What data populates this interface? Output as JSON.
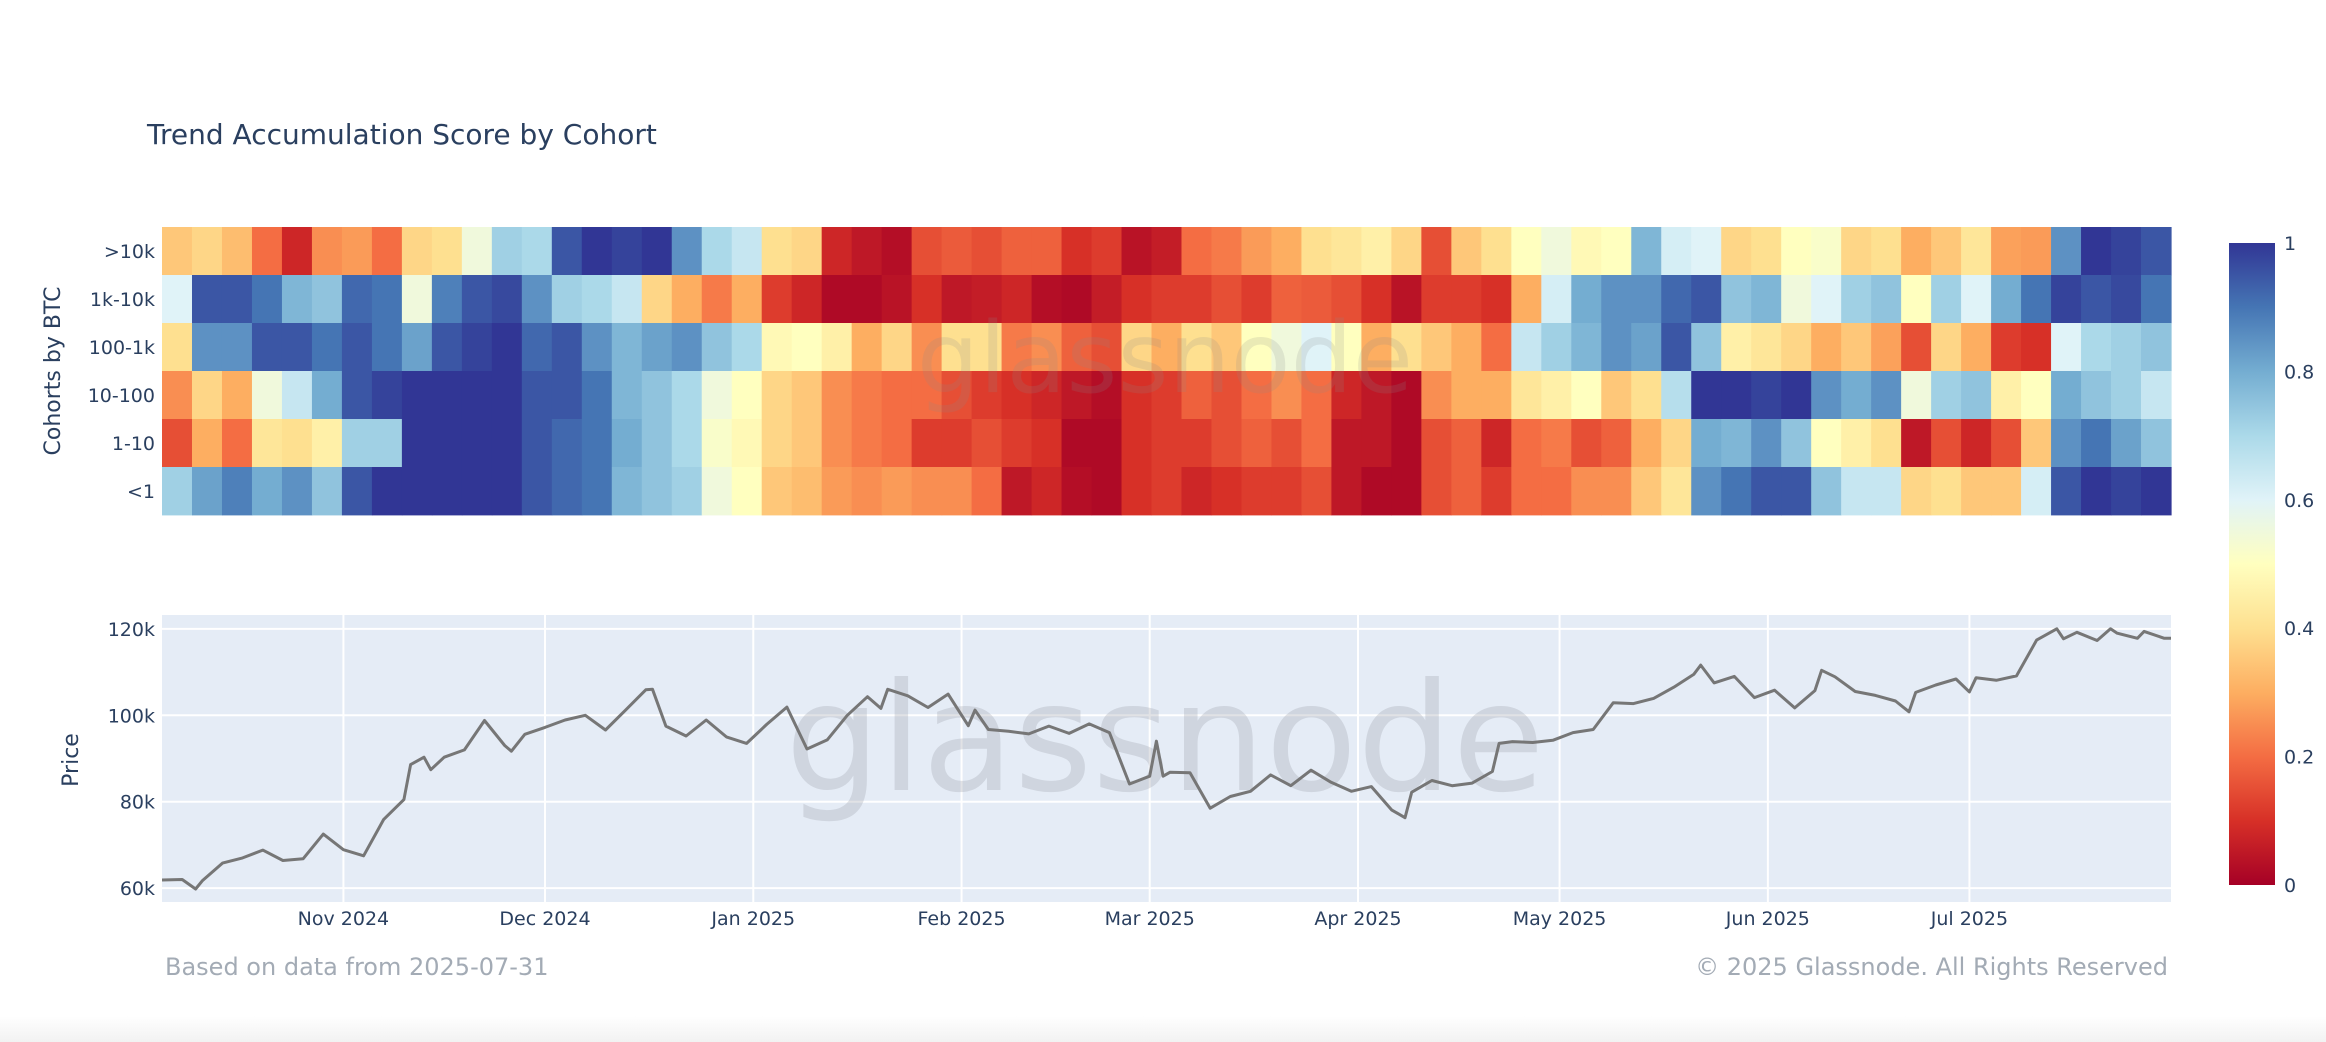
{
  "title": "Trend Accumulation Score by Cohort",
  "footer": {
    "left": "Based on data from 2025-07-31",
    "right": "© 2025 Glassnode. All Rights Reserved"
  },
  "watermark": "glassnode",
  "chart_data": [
    {
      "type": "heatmap",
      "ylabel": "Cohorts by BTC",
      "x_range": [
        "2024-10-05",
        "2025-07-31"
      ],
      "colorscale": [
        "#a50026",
        "#d73027",
        "#f46d43",
        "#fdae61",
        "#fee090",
        "#ffffbf",
        "#e0f3f8",
        "#abd9e9",
        "#74add1",
        "#4575b4",
        "#313695"
      ],
      "zlim": [
        0,
        1
      ],
      "colorbar_ticks": [
        "0",
        "0.2",
        "0.4",
        "0.6",
        "0.8",
        "1"
      ],
      "colorbar_tick_values": [
        0,
        0.2,
        0.4,
        0.6,
        0.8,
        1
      ],
      "rows": [
        {
          "label": ">10k",
          "values": [
            0.35,
            0.38,
            0.33,
            0.2,
            0.08,
            0.25,
            0.27,
            0.2,
            0.38,
            0.4,
            0.55,
            0.72,
            0.7,
            0.95,
            1,
            0.98,
            1,
            0.85,
            0.7,
            0.65,
            0.4,
            0.38,
            0.08,
            0.05,
            0.03,
            0.15,
            0.17,
            0.15,
            0.18,
            0.18,
            0.1,
            0.12,
            0.04,
            0.06,
            0.2,
            0.22,
            0.27,
            0.3,
            0.4,
            0.42,
            0.45,
            0.38,
            0.15,
            0.35,
            0.4,
            0.5,
            0.55,
            0.48,
            0.5,
            0.78,
            0.62,
            0.6,
            0.38,
            0.4,
            0.5,
            0.52,
            0.38,
            0.4,
            0.3,
            0.35,
            0.42,
            0.28,
            0.27,
            0.85,
            1,
            0.98,
            0.95
          ]
        },
        {
          "label": "1k-10k",
          "values": [
            0.6,
            0.95,
            0.95,
            0.9,
            0.78,
            0.75,
            0.92,
            0.9,
            0.55,
            0.88,
            0.95,
            0.97,
            0.85,
            0.72,
            0.7,
            0.65,
            0.38,
            0.3,
            0.22,
            0.3,
            0.12,
            0.08,
            0.02,
            0.02,
            0.04,
            0.1,
            0.05,
            0.06,
            0.08,
            0.03,
            0.02,
            0.06,
            0.1,
            0.12,
            0.12,
            0.15,
            0.12,
            0.18,
            0.17,
            0.15,
            0.1,
            0.04,
            0.12,
            0.12,
            0.1,
            0.3,
            0.62,
            0.8,
            0.85,
            0.85,
            0.92,
            0.95,
            0.75,
            0.78,
            0.55,
            0.6,
            0.72,
            0.75,
            0.5,
            0.72,
            0.6,
            0.8,
            0.9,
            0.98,
            0.95,
            0.97,
            0.9
          ]
        },
        {
          "label": "100-1k",
          "values": [
            0.4,
            0.85,
            0.85,
            0.95,
            0.95,
            0.9,
            0.95,
            0.9,
            0.82,
            0.95,
            0.98,
            1,
            0.92,
            0.95,
            0.85,
            0.78,
            0.82,
            0.85,
            0.75,
            0.7,
            0.48,
            0.5,
            0.45,
            0.3,
            0.38,
            0.25,
            0.4,
            0.4,
            0.22,
            0.25,
            0.18,
            0.15,
            0.38,
            0.3,
            0.4,
            0.35,
            0.5,
            0.55,
            0.6,
            0.5,
            0.3,
            0.4,
            0.35,
            0.3,
            0.2,
            0.65,
            0.72,
            0.78,
            0.85,
            0.82,
            0.95,
            0.75,
            0.45,
            0.42,
            0.38,
            0.3,
            0.35,
            0.28,
            0.15,
            0.38,
            0.3,
            0.12,
            0.1,
            0.6,
            0.7,
            0.72,
            0.75
          ]
        },
        {
          "label": "10-100",
          "values": [
            0.25,
            0.38,
            0.3,
            0.55,
            0.65,
            0.8,
            0.95,
            0.98,
            1,
            1,
            1,
            1,
            0.95,
            0.95,
            0.9,
            0.78,
            0.75,
            0.7,
            0.55,
            0.5,
            0.38,
            0.35,
            0.25,
            0.22,
            0.2,
            0.2,
            0.15,
            0.12,
            0.1,
            0.08,
            0.05,
            0.03,
            0.1,
            0.12,
            0.18,
            0.15,
            0.2,
            0.25,
            0.2,
            0.08,
            0.05,
            0.02,
            0.25,
            0.3,
            0.3,
            0.42,
            0.45,
            0.5,
            0.35,
            0.4,
            0.68,
            1,
            1,
            0.98,
            1,
            0.85,
            0.8,
            0.85,
            0.55,
            0.72,
            0.75,
            0.45,
            0.5,
            0.8,
            0.75,
            0.72,
            0.65
          ]
        },
        {
          "label": "1-10",
          "values": [
            0.15,
            0.3,
            0.2,
            0.42,
            0.4,
            0.45,
            0.72,
            0.72,
            1,
            1,
            1,
            1,
            0.95,
            0.92,
            0.9,
            0.8,
            0.75,
            0.7,
            0.52,
            0.48,
            0.38,
            0.35,
            0.25,
            0.22,
            0.2,
            0.12,
            0.12,
            0.15,
            0.12,
            0.1,
            0.02,
            0.02,
            0.1,
            0.12,
            0.12,
            0.15,
            0.18,
            0.15,
            0.2,
            0.05,
            0.05,
            0.02,
            0.15,
            0.18,
            0.08,
            0.2,
            0.22,
            0.15,
            0.18,
            0.3,
            0.38,
            0.8,
            0.78,
            0.85,
            0.75,
            0.5,
            0.45,
            0.4,
            0.05,
            0.15,
            0.08,
            0.15,
            0.35,
            0.85,
            0.9,
            0.82,
            0.75
          ]
        },
        {
          "label": "<1",
          "values": [
            0.72,
            0.82,
            0.88,
            0.8,
            0.85,
            0.75,
            0.95,
            1,
            1,
            1,
            1,
            1,
            0.95,
            0.92,
            0.9,
            0.78,
            0.75,
            0.72,
            0.55,
            0.5,
            0.35,
            0.33,
            0.27,
            0.25,
            0.27,
            0.25,
            0.25,
            0.2,
            0.05,
            0.08,
            0.03,
            0.02,
            0.1,
            0.12,
            0.08,
            0.1,
            0.12,
            0.12,
            0.15,
            0.05,
            0.02,
            0.02,
            0.15,
            0.18,
            0.12,
            0.2,
            0.2,
            0.25,
            0.25,
            0.35,
            0.42,
            0.85,
            0.9,
            0.95,
            0.95,
            0.75,
            0.65,
            0.65,
            0.38,
            0.4,
            0.35,
            0.35,
            0.62,
            0.95,
            1,
            0.98,
            1
          ]
        }
      ]
    },
    {
      "type": "line",
      "ylabel": "Price",
      "ylim": [
        56.8,
        123.2
      ],
      "xlim": [
        "2024-10-05",
        "2025-07-31"
      ],
      "grid": true,
      "line_color": "#767676",
      "background": "#e5ecf6",
      "y_ticks": [
        {
          "value": 60,
          "label": "60k"
        },
        {
          "value": 80,
          "label": "80k"
        },
        {
          "value": 100,
          "label": "100k"
        },
        {
          "value": 120,
          "label": "120k"
        }
      ],
      "x_ticks": [
        {
          "date": "2024-11-01",
          "label": "Nov 2024"
        },
        {
          "date": "2024-12-01",
          "label": "Dec 2024"
        },
        {
          "date": "2025-01-01",
          "label": "Jan 2025"
        },
        {
          "date": "2025-02-01",
          "label": "Feb 2025"
        },
        {
          "date": "2025-03-01",
          "label": "Mar 2025"
        },
        {
          "date": "2025-04-01",
          "label": "Apr 2025"
        },
        {
          "date": "2025-05-01",
          "label": "May 2025"
        },
        {
          "date": "2025-06-01",
          "label": "Jun 2025"
        },
        {
          "date": "2025-07-01",
          "label": "Jul 2025"
        }
      ],
      "points": [
        [
          "2024-10-05",
          61.9
        ],
        [
          "2024-10-08",
          62.0
        ],
        [
          "2024-10-10",
          59.8
        ],
        [
          "2024-10-11",
          61.7
        ],
        [
          "2024-10-14",
          65.8
        ],
        [
          "2024-10-17",
          67.0
        ],
        [
          "2024-10-20",
          68.8
        ],
        [
          "2024-10-23",
          66.4
        ],
        [
          "2024-10-26",
          66.8
        ],
        [
          "2024-10-29",
          72.5
        ],
        [
          "2024-11-01",
          68.9
        ],
        [
          "2024-11-04",
          67.5
        ],
        [
          "2024-11-07",
          75.9
        ],
        [
          "2024-11-10",
          80.5
        ],
        [
          "2024-11-11",
          88.6
        ],
        [
          "2024-11-13",
          90.3
        ],
        [
          "2024-11-14",
          87.4
        ],
        [
          "2024-11-16",
          90.3
        ],
        [
          "2024-11-19",
          92.0
        ],
        [
          "2024-11-22",
          98.8
        ],
        [
          "2024-11-25",
          93.0
        ],
        [
          "2024-11-26",
          91.7
        ],
        [
          "2024-11-28",
          95.6
        ],
        [
          "2024-12-01",
          97.2
        ],
        [
          "2024-12-04",
          98.9
        ],
        [
          "2024-12-07",
          100.0
        ],
        [
          "2024-12-10",
          96.6
        ],
        [
          "2024-12-13",
          101.2
        ],
        [
          "2024-12-16",
          105.9
        ],
        [
          "2024-12-17",
          106.0
        ],
        [
          "2024-12-19",
          97.5
        ],
        [
          "2024-12-22",
          95.2
        ],
        [
          "2024-12-25",
          98.9
        ],
        [
          "2024-12-28",
          95.0
        ],
        [
          "2024-12-31",
          93.5
        ],
        [
          "2025-01-03",
          97.9
        ],
        [
          "2025-01-06",
          101.9
        ],
        [
          "2025-01-09",
          92.2
        ],
        [
          "2025-01-12",
          94.3
        ],
        [
          "2025-01-15",
          100.0
        ],
        [
          "2025-01-18",
          104.3
        ],
        [
          "2025-01-20",
          101.6
        ],
        [
          "2025-01-21",
          106.0
        ],
        [
          "2025-01-24",
          104.5
        ],
        [
          "2025-01-27",
          101.8
        ],
        [
          "2025-01-30",
          104.9
        ],
        [
          "2025-02-02",
          97.6
        ],
        [
          "2025-02-03",
          101.2
        ],
        [
          "2025-02-05",
          96.7
        ],
        [
          "2025-02-08",
          96.3
        ],
        [
          "2025-02-11",
          95.7
        ],
        [
          "2025-02-14",
          97.5
        ],
        [
          "2025-02-17",
          95.8
        ],
        [
          "2025-02-20",
          98.0
        ],
        [
          "2025-02-23",
          96.0
        ],
        [
          "2025-02-26",
          84.1
        ],
        [
          "2025-03-01",
          85.9
        ],
        [
          "2025-03-02",
          94.0
        ],
        [
          "2025-03-03",
          85.9
        ],
        [
          "2025-03-04",
          86.8
        ],
        [
          "2025-03-07",
          86.7
        ],
        [
          "2025-03-10",
          78.5
        ],
        [
          "2025-03-13",
          81.2
        ],
        [
          "2025-03-16",
          82.4
        ],
        [
          "2025-03-19",
          86.2
        ],
        [
          "2025-03-22",
          83.7
        ],
        [
          "2025-03-25",
          87.3
        ],
        [
          "2025-03-28",
          84.5
        ],
        [
          "2025-03-31",
          82.4
        ],
        [
          "2025-04-03",
          83.5
        ],
        [
          "2025-04-06",
          78.1
        ],
        [
          "2025-04-08",
          76.3
        ],
        [
          "2025-04-09",
          82.2
        ],
        [
          "2025-04-12",
          84.9
        ],
        [
          "2025-04-15",
          83.7
        ],
        [
          "2025-04-18",
          84.3
        ],
        [
          "2025-04-21",
          87.0
        ],
        [
          "2025-04-22",
          93.5
        ],
        [
          "2025-04-24",
          93.9
        ],
        [
          "2025-04-27",
          93.7
        ],
        [
          "2025-04-30",
          94.2
        ],
        [
          "2025-05-03",
          96.0
        ],
        [
          "2025-05-06",
          96.7
        ],
        [
          "2025-05-09",
          102.9
        ],
        [
          "2025-05-12",
          102.7
        ],
        [
          "2025-05-15",
          103.9
        ],
        [
          "2025-05-18",
          106.5
        ],
        [
          "2025-05-21",
          109.5
        ],
        [
          "2025-05-22",
          111.6
        ],
        [
          "2025-05-24",
          107.5
        ],
        [
          "2025-05-27",
          109.0
        ],
        [
          "2025-05-30",
          104.1
        ],
        [
          "2025-06-02",
          105.8
        ],
        [
          "2025-06-05",
          101.7
        ],
        [
          "2025-06-08",
          105.7
        ],
        [
          "2025-06-09",
          110.4
        ],
        [
          "2025-06-11",
          108.9
        ],
        [
          "2025-06-14",
          105.5
        ],
        [
          "2025-06-17",
          104.6
        ],
        [
          "2025-06-20",
          103.3
        ],
        [
          "2025-06-22",
          100.8
        ],
        [
          "2025-06-23",
          105.3
        ],
        [
          "2025-06-26",
          107.0
        ],
        [
          "2025-06-29",
          108.4
        ],
        [
          "2025-07-01",
          105.4
        ],
        [
          "2025-07-02",
          108.7
        ],
        [
          "2025-07-05",
          108.1
        ],
        [
          "2025-07-08",
          109.1
        ],
        [
          "2025-07-11",
          117.4
        ],
        [
          "2025-07-14",
          120.0
        ],
        [
          "2025-07-15",
          117.7
        ],
        [
          "2025-07-17",
          119.2
        ],
        [
          "2025-07-20",
          117.3
        ],
        [
          "2025-07-22",
          120.0
        ],
        [
          "2025-07-23",
          119.0
        ],
        [
          "2025-07-26",
          117.8
        ],
        [
          "2025-07-27",
          119.4
        ],
        [
          "2025-07-30",
          117.8
        ],
        [
          "2025-07-31",
          117.8
        ]
      ]
    }
  ]
}
